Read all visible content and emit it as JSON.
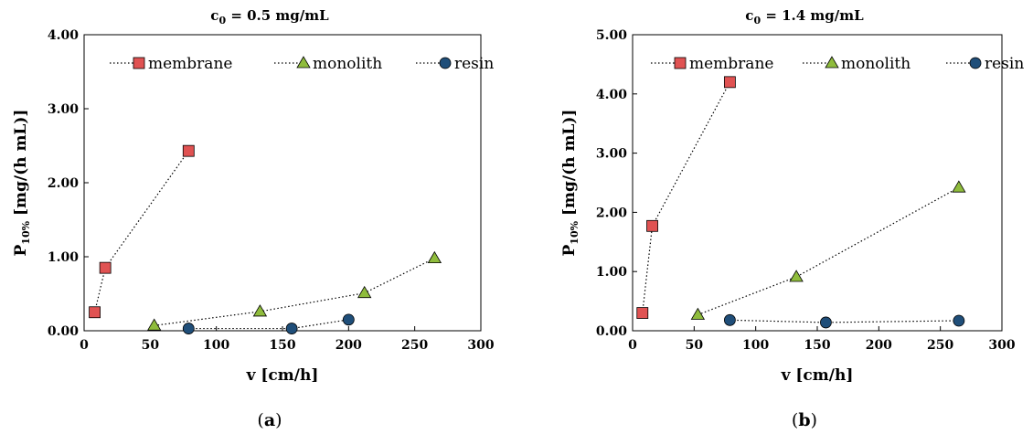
{
  "chart_data": [
    {
      "type": "line",
      "title": "c0 = 0.5 mg/mL",
      "title_base": "c",
      "title_sub": "0",
      "title_rest": " = 0.5 mg/mL",
      "xlabel": "v [cm/h]",
      "ylabel_base": "P",
      "ylabel_sub": "10%",
      "ylabel_rest": " [mg/(h mL)]",
      "xlim": [
        0,
        300
      ],
      "ylim": [
        0,
        4
      ],
      "xticks": [
        "0",
        "50",
        "100",
        "150",
        "200",
        "250",
        "300"
      ],
      "yticks": [
        "0.00",
        "1.00",
        "2.00",
        "3.00",
        "4.00"
      ],
      "legend_position": "top",
      "panel_label": "(a)",
      "panel_letter": "a",
      "series": [
        {
          "name": "membrane",
          "marker": "square",
          "color": "#e05252",
          "x": [
            8,
            16,
            79
          ],
          "y": [
            0.25,
            0.85,
            2.43
          ]
        },
        {
          "name": "monolith",
          "marker": "triangle",
          "color": "#8fbc3c",
          "x": [
            53,
            133,
            212,
            265
          ],
          "y": [
            0.07,
            0.26,
            0.51,
            0.98
          ]
        },
        {
          "name": "resin",
          "marker": "circle",
          "color": "#1f4e79",
          "x": [
            79,
            157,
            200
          ],
          "y": [
            0.03,
            0.03,
            0.15
          ]
        }
      ]
    },
    {
      "type": "line",
      "title": "c0 = 1.4 mg/mL",
      "title_base": "c",
      "title_sub": "0",
      "title_rest": " = 1.4 mg/mL",
      "xlabel": "v [cm/h]",
      "ylabel_base": "P",
      "ylabel_sub": "10%",
      "ylabel_rest": " [mg/(h mL)]",
      "xlim": [
        0,
        300
      ],
      "ylim": [
        0,
        5
      ],
      "xticks": [
        "0",
        "50",
        "100",
        "150",
        "200",
        "250",
        "300"
      ],
      "yticks": [
        "0.00",
        "1.00",
        "2.00",
        "3.00",
        "4.00",
        "5.00"
      ],
      "legend_position": "top",
      "panel_label": "(b)",
      "panel_letter": "b",
      "series": [
        {
          "name": "membrane",
          "marker": "square",
          "color": "#e05252",
          "x": [
            8,
            16,
            79
          ],
          "y": [
            0.3,
            1.77,
            4.2
          ]
        },
        {
          "name": "monolith",
          "marker": "triangle",
          "color": "#8fbc3c",
          "x": [
            53,
            133,
            265
          ],
          "y": [
            0.27,
            0.91,
            2.42
          ]
        },
        {
          "name": "resin",
          "marker": "circle",
          "color": "#1f4e79",
          "x": [
            79,
            157,
            265
          ],
          "y": [
            0.18,
            0.14,
            0.17
          ]
        }
      ]
    }
  ]
}
